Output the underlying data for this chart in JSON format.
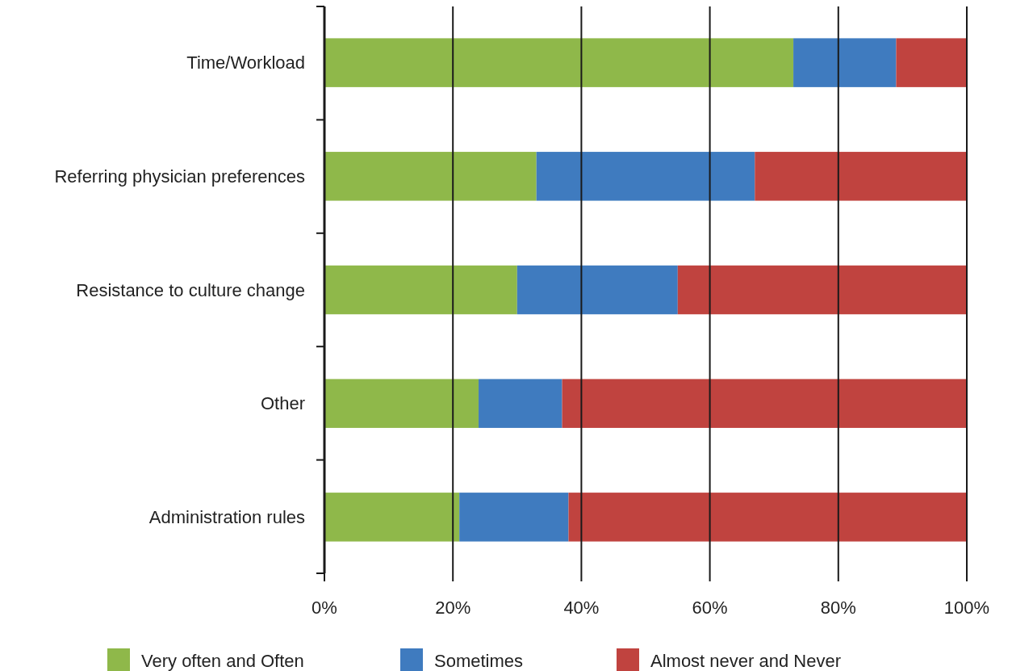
{
  "chart_data": {
    "type": "bar",
    "orientation": "horizontal",
    "stacked": true,
    "categories": [
      "Time/Workload",
      "Referring physician preferences",
      "Resistance to culture change",
      "Other",
      "Administration rules"
    ],
    "series": [
      {
        "name": "Very often and Often",
        "color": "#8fb84a",
        "values": [
          73,
          33,
          30,
          24,
          21
        ]
      },
      {
        "name": "Sometimes",
        "color": "#3f7bbf",
        "values": [
          16,
          34,
          25,
          13,
          17
        ]
      },
      {
        "name": "Almost never and Never",
        "color": "#c0433f",
        "values": [
          11,
          33,
          45,
          63,
          62
        ]
      }
    ],
    "xlim": [
      0,
      100
    ],
    "xticks": [
      {
        "value": 0,
        "label": "0%"
      },
      {
        "value": 20,
        "label": "20%"
      },
      {
        "value": 40,
        "label": "40%"
      },
      {
        "value": 60,
        "label": "60%"
      },
      {
        "value": 80,
        "label": "80%"
      },
      {
        "value": 100,
        "label": "100%"
      }
    ],
    "grid": "x",
    "legend": "bottom"
  }
}
